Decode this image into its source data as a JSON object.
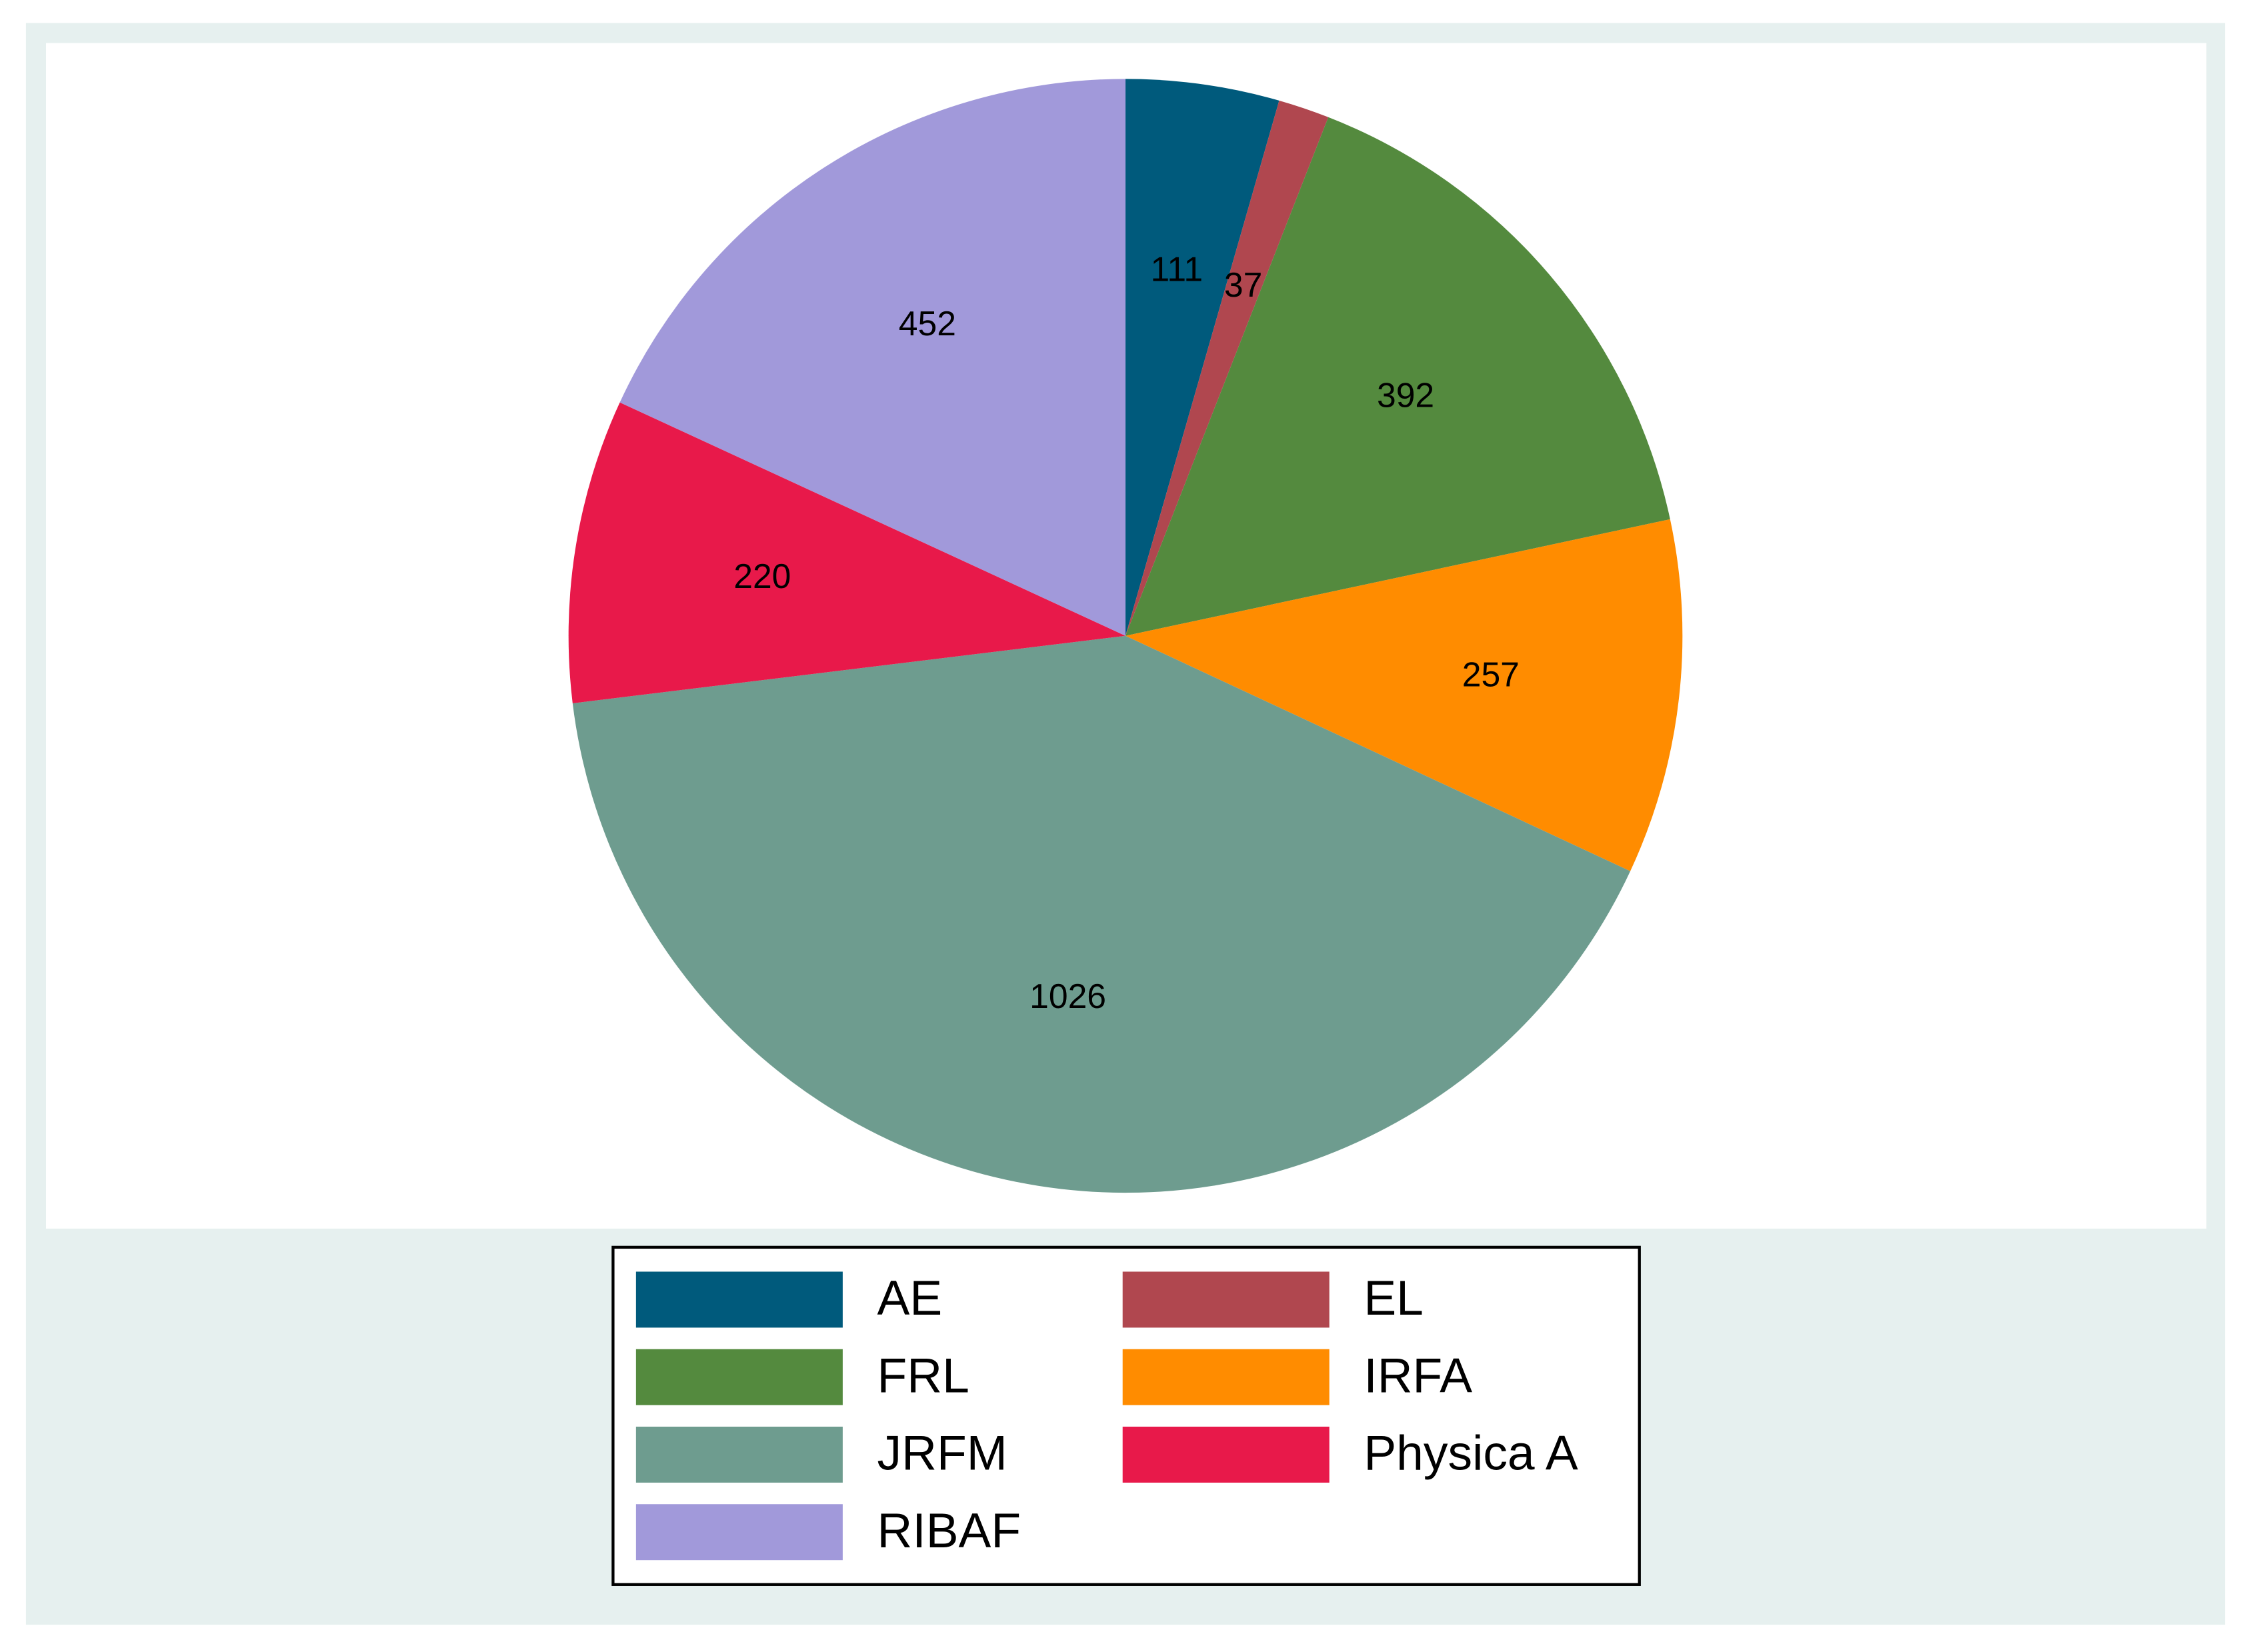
{
  "chart_data": {
    "type": "pie",
    "categories": [
      "AE",
      "EL",
      "FRL",
      "IRFA",
      "JRFM",
      "Physica A",
      "RIBAF"
    ],
    "values": [
      111,
      37,
      392,
      257,
      1026,
      220,
      452
    ],
    "colors": [
      "#005a7c",
      "#b0474f",
      "#548a3e",
      "#ff8c00",
      "#6e9c8f",
      "#e8194a",
      "#a199da"
    ],
    "legend": "bottom"
  }
}
